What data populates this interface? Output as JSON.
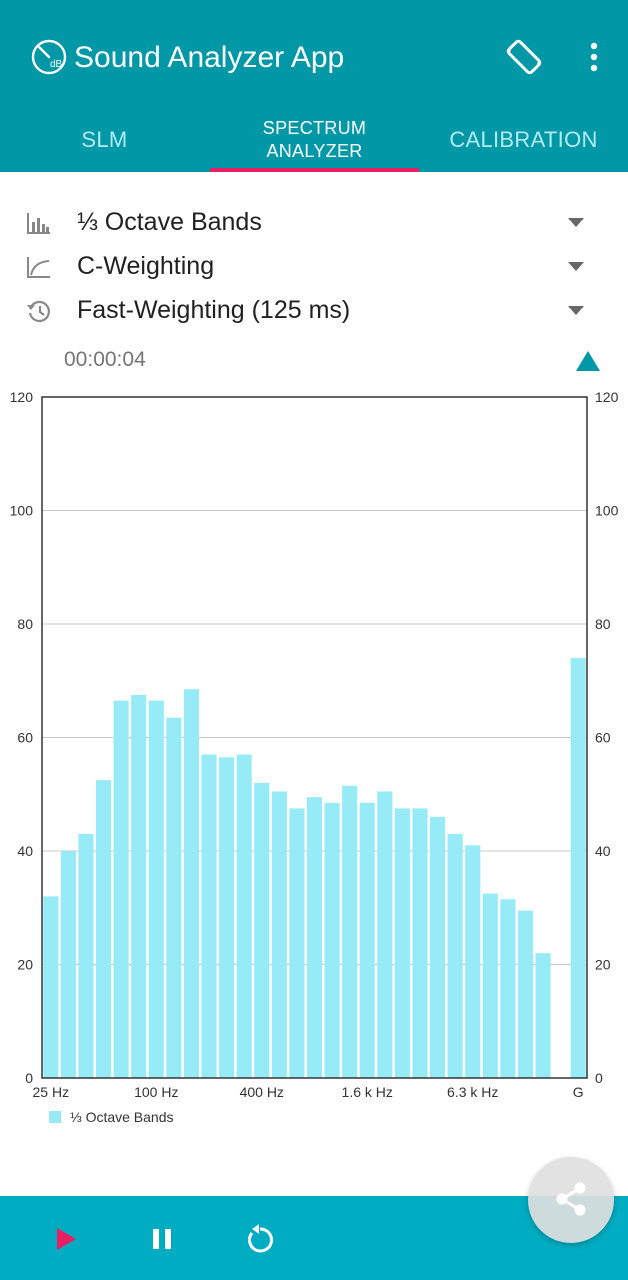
{
  "app": {
    "title": "Sound Analyzer App"
  },
  "tabs": [
    {
      "label": "SLM"
    },
    {
      "label_line1": "SPECTRUM",
      "label_line2": "ANALYZER"
    },
    {
      "label": "CALIBRATION"
    }
  ],
  "options": {
    "band": "⅓ Octave Bands",
    "weighting": "C-Weighting",
    "time_weighting": "Fast-Weighting (125 ms)"
  },
  "timer": "00:00:04",
  "icons": {
    "logo": "db-gauge-logo-icon",
    "rotate": "screen-rotation-icon",
    "more": "more-vert-icon",
    "band": "bar-chart-icon",
    "weighting": "curve-icon",
    "time": "history-clock-icon",
    "caret": "caret-down-icon",
    "collapse": "triangle-up-icon",
    "play": "play-icon",
    "pause": "pause-icon",
    "reset": "replay-icon",
    "share": "share-icon"
  },
  "colors": {
    "primary": "#0097a7",
    "bottom_bar": "#00acc1",
    "accent": "#e91e63",
    "bar": "#97ebf7"
  },
  "chart_data": {
    "type": "bar",
    "x_tick_labels": [
      "25 Hz",
      "100 Hz",
      "400 Hz",
      "1.6 k Hz",
      "6.3 k Hz",
      "G"
    ],
    "values": [
      32,
      40,
      43,
      52.5,
      66.5,
      67.5,
      66.5,
      63.5,
      68.5,
      57,
      56.5,
      57,
      52,
      50.5,
      47.5,
      49.5,
      48.5,
      51.5,
      48.5,
      50.5,
      47.5,
      47.5,
      46,
      43,
      41,
      32.5,
      31.5,
      29.5,
      22,
      0,
      74
    ],
    "y_ticks": [
      0,
      20,
      40,
      60,
      80,
      100,
      120
    ],
    "ylim": [
      0,
      120
    ],
    "legend": "⅓ Octave Bands",
    "legend_position": "bottom-left",
    "grid": true
  }
}
